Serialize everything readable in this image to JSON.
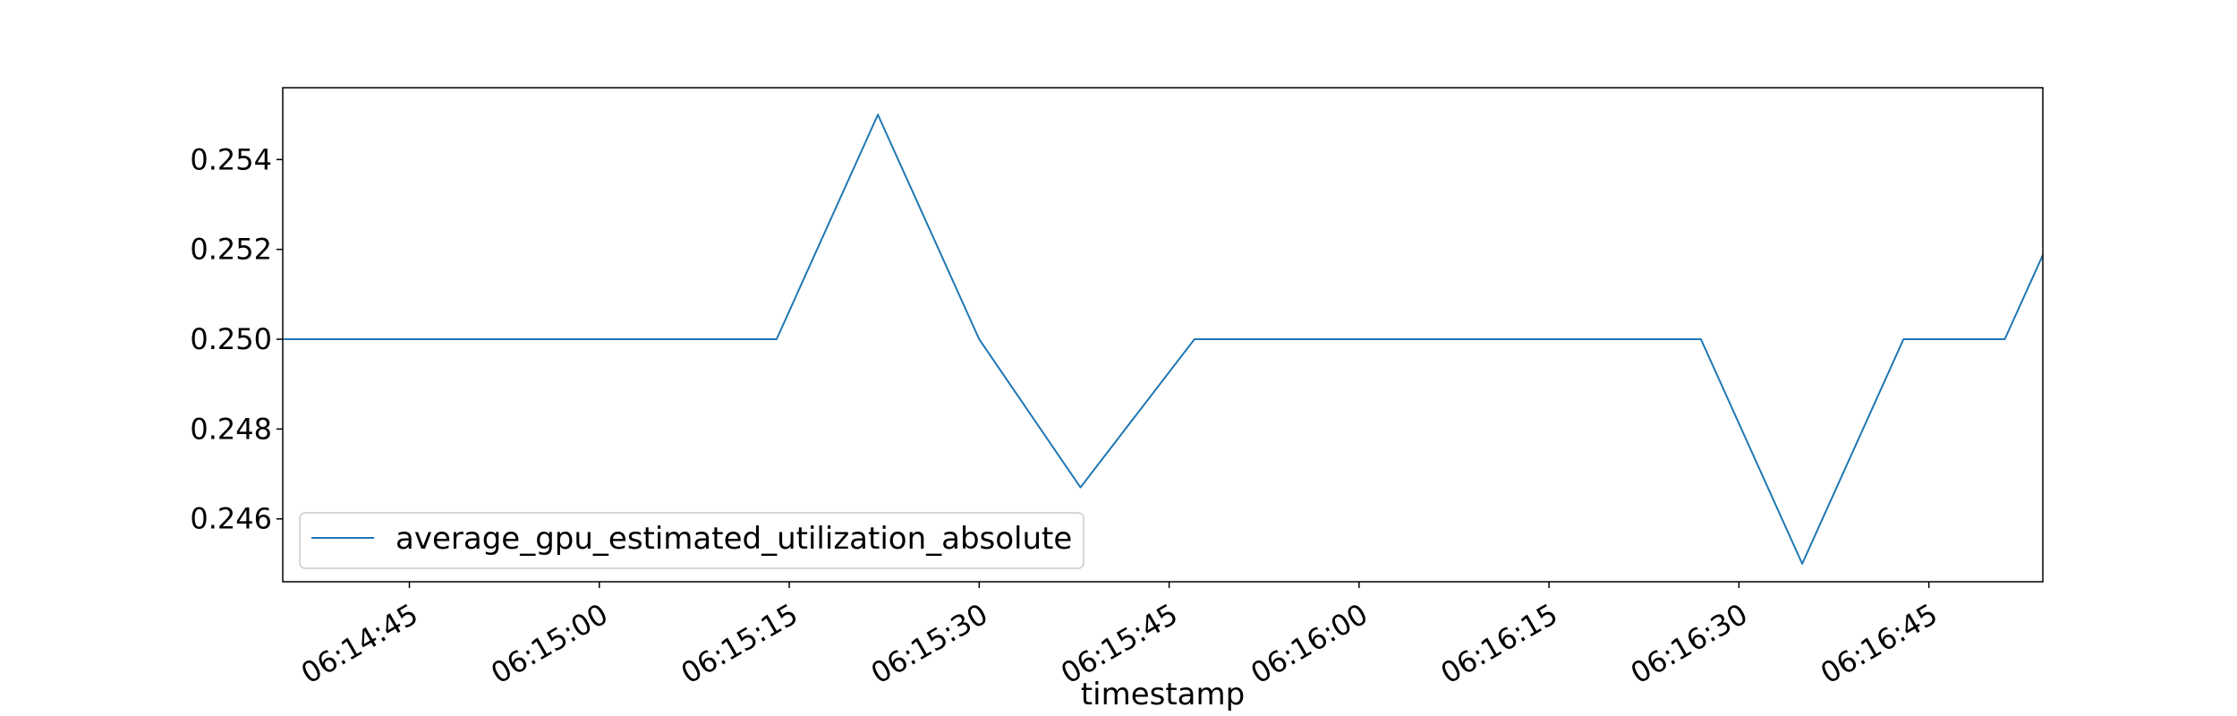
{
  "chart_data": {
    "type": "line",
    "xlabel": "timestamp",
    "ylabel": "",
    "x": [
      "06:14:36",
      "06:14:47",
      "06:14:58",
      "06:15:09",
      "06:15:20",
      "06:15:31",
      "06:15:42",
      "06:15:53",
      "06:16:04",
      "06:16:15",
      "06:16:26",
      "06:16:37",
      "06:16:48",
      "06:16:59"
    ],
    "xlim": [
      "06:14:35",
      "06:16:54"
    ],
    "x_ticks": [
      "06:14:45",
      "06:15:00",
      "06:15:15",
      "06:15:30",
      "06:15:45",
      "06:16:00",
      "06:16:15",
      "06:16:30",
      "06:16:45"
    ],
    "ylim": [
      0.2446,
      0.2556
    ],
    "y_ticks": [
      "0.246",
      "0.248",
      "0.250",
      "0.252",
      "0.254"
    ],
    "series": [
      {
        "name": "average_gpu_estimated_utilization_absolute",
        "color": "#1f77b4",
        "x": [
          "06:14:35",
          "06:14:43",
          "06:14:51",
          "06:14:59",
          "06:15:06",
          "06:15:14",
          "06:15:22",
          "06:15:30",
          "06:15:38",
          "06:15:47",
          "06:15:55",
          "06:16:03",
          "06:16:11",
          "06:16:19",
          "06:16:27",
          "06:16:35",
          "06:16:43",
          "06:16:51",
          "06:16:59"
        ],
        "values": [
          0.25,
          0.25,
          0.25,
          0.25,
          0.25,
          0.25,
          0.255,
          0.25,
          0.2467,
          0.25,
          0.25,
          0.25,
          0.25,
          0.25,
          0.25,
          0.245,
          0.25,
          0.25,
          0.255
        ]
      }
    ],
    "legend": "lower-left",
    "grid": false
  }
}
